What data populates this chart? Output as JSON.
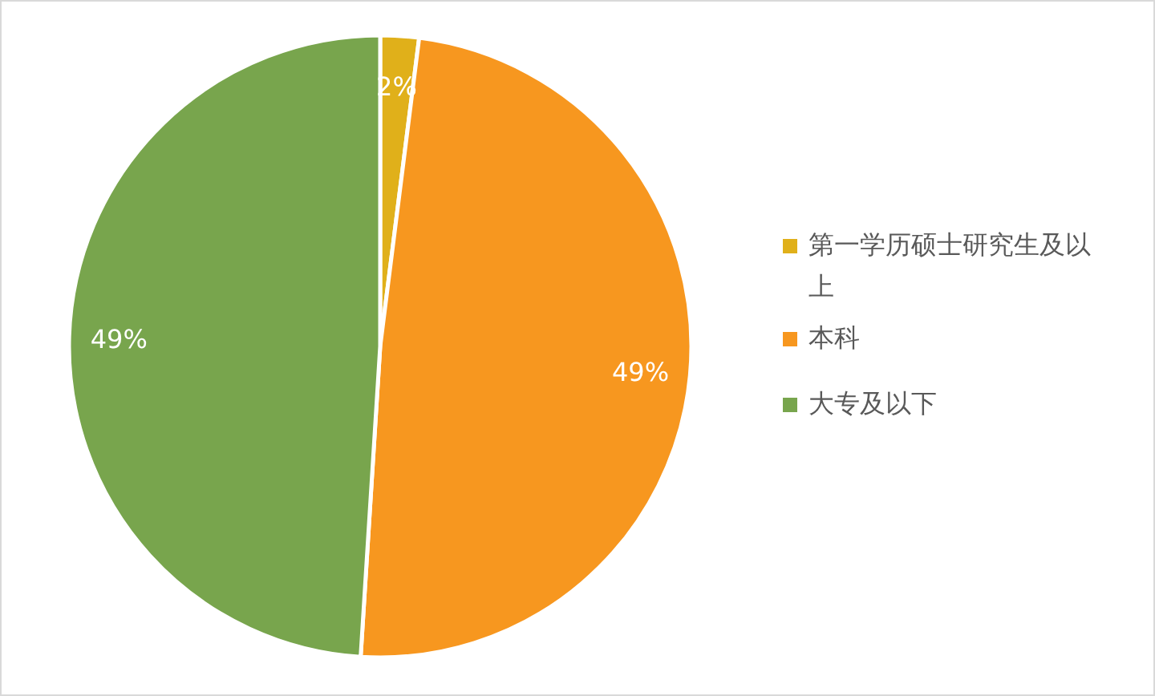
{
  "chart_data": {
    "type": "pie",
    "categories": [
      "第一学历硕士研究生及以上",
      "本科",
      "大专及以下"
    ],
    "values": [
      2,
      49,
      49
    ],
    "colors": [
      "#e0b01a",
      "#f7971f",
      "#78a54d"
    ],
    "value_labels": [
      "2%",
      "49%",
      "49%"
    ],
    "legend": "right"
  }
}
